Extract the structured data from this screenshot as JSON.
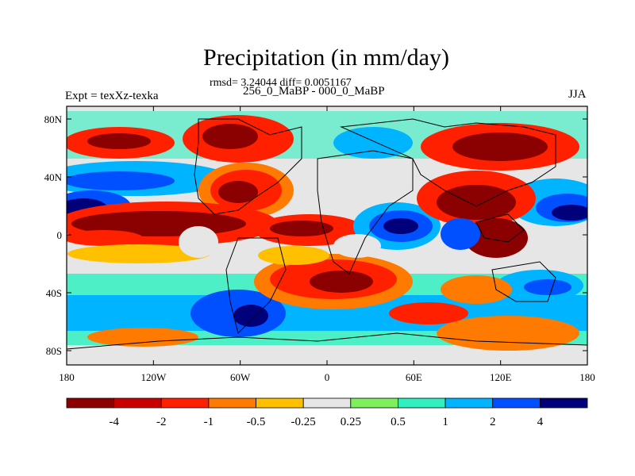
{
  "title": "Precipitation (in mm/day)",
  "stats": "rmsd= 3.24044 diff= 0.0051167",
  "experiment": "Expt = texXz-texka",
  "difference": "256_0_MaBP - 000_0_MaBP",
  "season": "JJA",
  "y_ticks": [
    "80N",
    "40N",
    "0",
    "40S",
    "80S"
  ],
  "x_ticks": [
    "180",
    "120W",
    "60W",
    "0",
    "60E",
    "120E",
    "180"
  ],
  "colorbar": {
    "colors": [
      "#8b0000",
      "#c80000",
      "#ff2000",
      "#ff7a00",
      "#ffc000",
      "#e6e6e6",
      "#7ef060",
      "#30f0c0",
      "#00b4ff",
      "#0050ff",
      "#00007a"
    ],
    "labels": [
      "-4",
      "-2",
      "-1",
      "-0.5",
      "-0.25",
      "0.25",
      "0.5",
      "1",
      "2",
      "4"
    ]
  },
  "legend": {
    "palette": {
      "deep_red": "#8b0000",
      "red": "#c80000",
      "orange_red": "#ff2000",
      "orange": "#ff7a00",
      "light_orange": "#ffc000",
      "neutral": "#e6e6e6",
      "green": "#7ef060",
      "teal": "#30f0c0",
      "light_blue": "#00b4ff",
      "blue": "#0050ff",
      "dark_blue": "#00007a"
    }
  }
}
